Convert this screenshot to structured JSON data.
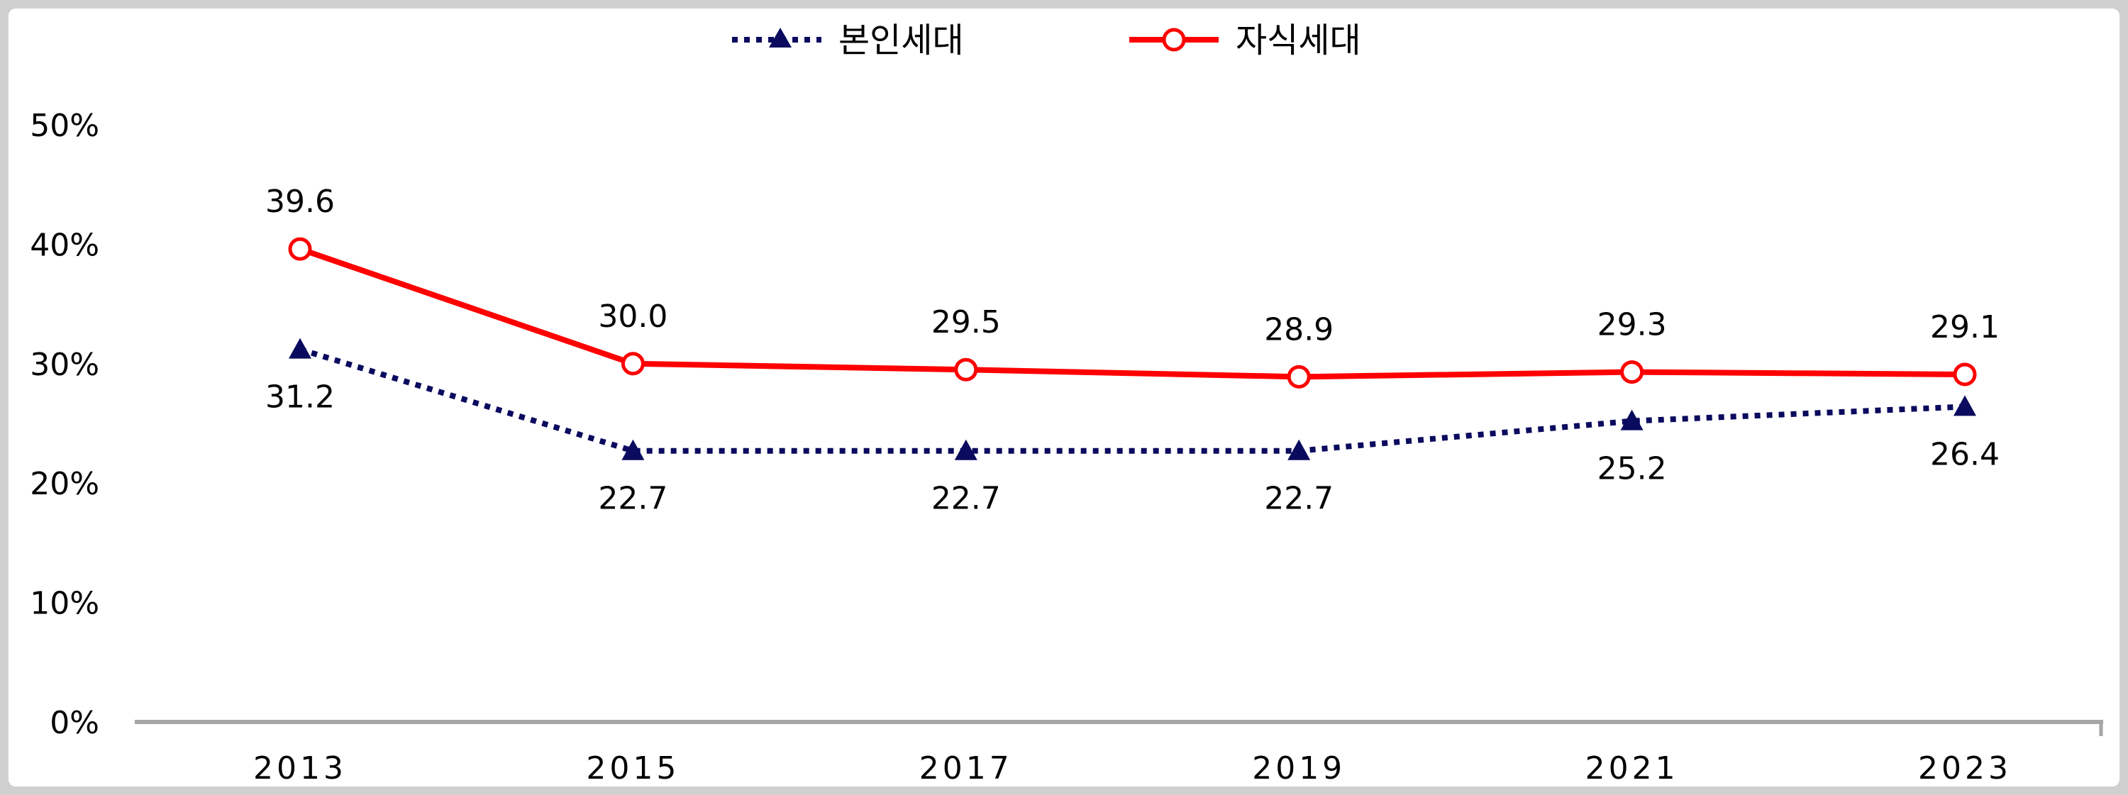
{
  "chart_data": {
    "type": "line",
    "categories": [
      "2013",
      "2015",
      "2017",
      "2019",
      "2021",
      "2023"
    ],
    "ylim": [
      0,
      50
    ],
    "y_ticks": [
      "0%",
      "10%",
      "20%",
      "30%",
      "40%",
      "50%"
    ],
    "grid": false,
    "legend_position": "top-center",
    "series": [
      {
        "name": "본인세대",
        "values": [
          31.2,
          22.7,
          22.7,
          22.7,
          25.2,
          26.4
        ],
        "labels": [
          "31.2",
          "22.7",
          "22.7",
          "22.7",
          "25.2",
          "26.4"
        ],
        "color": "#0a0a5e",
        "line_style": "dotted",
        "marker": "filled-triangle",
        "label_side": "below"
      },
      {
        "name": "자식세대",
        "values": [
          39.6,
          30.0,
          29.5,
          28.9,
          29.3,
          29.1
        ],
        "labels": [
          "39.6",
          "30.0",
          "29.5",
          "28.9",
          "29.3",
          "29.1"
        ],
        "color": "#ff0000",
        "line_style": "solid",
        "marker": "hollow-circle",
        "label_side": "above"
      }
    ]
  },
  "colors": {
    "axis": "#a6a6a6",
    "background": "#ffffff",
    "frame": "#d0d0d0"
  }
}
